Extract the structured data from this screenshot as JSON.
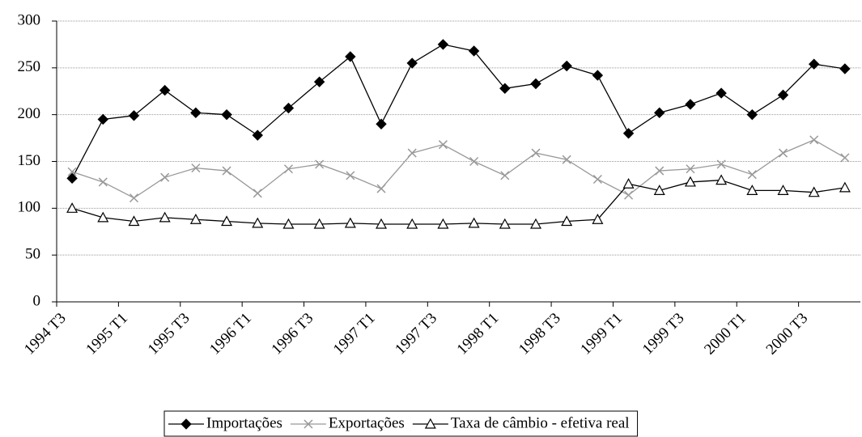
{
  "chart_data": {
    "type": "line",
    "categories": [
      "1994 T3",
      null,
      "1995 T1",
      null,
      "1995 T3",
      null,
      "1996 T1",
      null,
      "1996 T3",
      null,
      "1997 T1",
      null,
      "1997 T3",
      null,
      "1998 T1",
      null,
      "1998 T3",
      null,
      "1999 T1",
      null,
      "1999 T3",
      null,
      "2000 T1",
      null,
      "2000 T3",
      null
    ],
    "series": [
      {
        "name": "Importações",
        "color": "#000000",
        "marker": "diamond",
        "values": [
          132,
          195,
          199,
          226,
          202,
          200,
          178,
          207,
          235,
          262,
          190,
          255,
          275,
          268,
          228,
          233,
          252,
          242,
          180,
          202,
          211,
          223,
          200,
          221,
          254,
          249
        ]
      },
      {
        "name": "Exportações",
        "color": "#999999",
        "marker": "x",
        "values": [
          139,
          128,
          111,
          133,
          143,
          140,
          116,
          142,
          147,
          135,
          121,
          159,
          168,
          150,
          135,
          159,
          152,
          131,
          114,
          140,
          142,
          147,
          136,
          159,
          173,
          154
        ]
      },
      {
        "name": "Taxa de câmbio - efetiva real",
        "color": "#000000",
        "marker": "triangle",
        "values": [
          100,
          90,
          86,
          90,
          88,
          86,
          84,
          83,
          83,
          84,
          83,
          83,
          83,
          84,
          83,
          83,
          86,
          88,
          126,
          119,
          128,
          130,
          119,
          119,
          117,
          122
        ]
      }
    ],
    "ylim": [
      0,
      300
    ],
    "yticks": [
      0,
      50,
      100,
      150,
      200,
      250,
      300
    ],
    "grid": true,
    "legend": "bottom"
  }
}
